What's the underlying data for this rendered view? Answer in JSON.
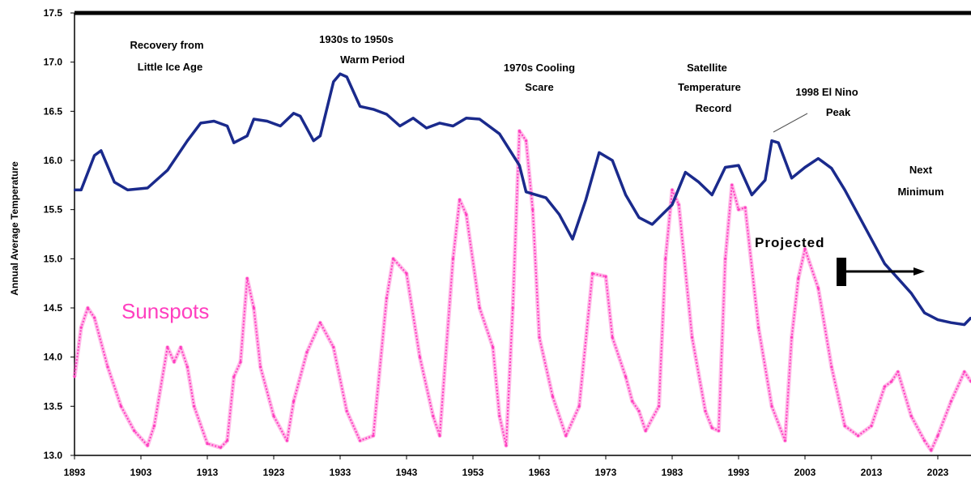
{
  "chart_data": {
    "type": "line",
    "title": "",
    "xlabel": "",
    "ylabel": "Annual Average Temperature",
    "xlim": [
      1893,
      2028
    ],
    "ylim": [
      13.0,
      17.5
    ],
    "x_ticks": [
      "1893",
      "1903",
      "1913",
      "1923",
      "1933",
      "1943",
      "1953",
      "1963",
      "1973",
      "1983",
      "1993",
      "2003",
      "2013",
      "2023"
    ],
    "y_ticks": [
      "13.0",
      "13.5",
      "14.0",
      "14.5",
      "15.0",
      "15.5",
      "16.0",
      "16.5",
      "17.0",
      "17.5"
    ],
    "grid": false,
    "colors": {
      "temperature": "#1a2a8c",
      "sunspots": "#ff3fbf",
      "axis": "#000000"
    },
    "series": [
      {
        "name": "",
        "x": [
          1893,
          1894,
          1896,
          1897,
          1899,
          1901,
          1904,
          1907,
          1910,
          1912,
          1914,
          1916,
          1917,
          1919,
          1920,
          1922,
          1924,
          1926,
          1927,
          1929,
          1930,
          1932,
          1933,
          1934,
          1936,
          1938,
          1940,
          1942,
          1944,
          1946,
          1948,
          1950,
          1952,
          1954,
          1957,
          1960,
          1961,
          1964,
          1966,
          1968,
          1970,
          1972,
          1974,
          1976,
          1978,
          1980,
          1983,
          1985,
          1987,
          1989,
          1991,
          1993,
          1995,
          1997,
          1998,
          1999,
          2000,
          2001,
          2003,
          2005,
          2007,
          2009,
          2011,
          2013,
          2015,
          2017,
          2019,
          2021,
          2023,
          2025,
          2027,
          2028
        ],
        "values": [
          15.7,
          15.7,
          16.05,
          16.1,
          15.78,
          15.7,
          15.72,
          15.9,
          16.2,
          16.38,
          16.4,
          16.35,
          16.18,
          16.25,
          16.42,
          16.4,
          16.35,
          16.48,
          16.45,
          16.2,
          16.25,
          16.8,
          16.88,
          16.85,
          16.55,
          16.52,
          16.47,
          16.35,
          16.43,
          16.33,
          16.38,
          16.35,
          16.43,
          16.42,
          16.27,
          15.95,
          15.68,
          15.62,
          15.45,
          15.2,
          15.6,
          16.08,
          16.0,
          15.65,
          15.42,
          15.35,
          15.55,
          15.88,
          15.78,
          15.65,
          15.93,
          15.95,
          15.65,
          15.8,
          16.2,
          16.18,
          16.0,
          15.82,
          15.93,
          16.02,
          15.92,
          15.7,
          15.45,
          15.2,
          14.95,
          14.8,
          14.65,
          14.45,
          14.38,
          14.35,
          14.33,
          14.4
        ]
      },
      {
        "name": "Sunspots",
        "x": [
          1893,
          1894,
          1895,
          1896,
          1898,
          1900,
          1902,
          1904,
          1905,
          1907,
          1908,
          1909,
          1910,
          1911,
          1913,
          1915,
          1916,
          1917,
          1918,
          1919,
          1920,
          1921,
          1923,
          1925,
          1926,
          1928,
          1930,
          1932,
          1934,
          1936,
          1938,
          1940,
          1941,
          1943,
          1945,
          1947,
          1948,
          1950,
          1951,
          1952,
          1954,
          1956,
          1957,
          1958,
          1959,
          1960,
          1961,
          1962,
          1963,
          1965,
          1967,
          1969,
          1971,
          1973,
          1974,
          1976,
          1977,
          1978,
          1979,
          1981,
          1982,
          1983,
          1984,
          1986,
          1988,
          1989,
          1990,
          1991,
          1992,
          1993,
          1994,
          1996,
          1998,
          2000,
          2001,
          2002,
          2003,
          2005,
          2007,
          2009,
          2011,
          2013,
          2015,
          2016,
          2017,
          2019,
          2021,
          2022,
          2023,
          2025,
          2027,
          2028
        ],
        "values": [
          13.8,
          14.3,
          14.5,
          14.4,
          13.9,
          13.5,
          13.25,
          13.1,
          13.3,
          14.1,
          13.95,
          14.1,
          13.9,
          13.5,
          13.12,
          13.08,
          13.15,
          13.8,
          13.95,
          14.8,
          14.5,
          13.9,
          13.4,
          13.15,
          13.55,
          14.05,
          14.35,
          14.1,
          13.45,
          13.15,
          13.2,
          14.6,
          15.0,
          14.85,
          14.0,
          13.4,
          13.2,
          15.0,
          15.6,
          15.45,
          14.5,
          14.1,
          13.4,
          13.1,
          14.5,
          16.3,
          16.2,
          15.5,
          14.2,
          13.6,
          13.2,
          13.5,
          14.85,
          14.82,
          14.2,
          13.8,
          13.55,
          13.45,
          13.25,
          13.5,
          15.0,
          15.7,
          15.55,
          14.2,
          13.45,
          13.28,
          13.25,
          15.0,
          15.75,
          15.5,
          15.52,
          14.3,
          13.5,
          13.15,
          14.2,
          14.8,
          15.1,
          14.7,
          13.9,
          13.3,
          13.2,
          13.3,
          13.7,
          13.75,
          13.85,
          13.4,
          13.15,
          13.05,
          13.2,
          13.55,
          13.85,
          13.75
        ]
      }
    ],
    "annotations": [
      {
        "id": "recovery",
        "lines": [
          "Recovery from",
          "Little Ice Age"
        ]
      },
      {
        "id": "warm",
        "lines": [
          "1930s to 1950s",
          "Warm Period"
        ]
      },
      {
        "id": "cooling",
        "lines": [
          "1970s Cooling",
          "Scare"
        ]
      },
      {
        "id": "satellite",
        "lines": [
          "Satellite",
          "Temperature",
          "Record"
        ]
      },
      {
        "id": "elnino",
        "lines": [
          "1998 El Nino",
          "Peak"
        ]
      },
      {
        "id": "nextmin",
        "lines": [
          "Next",
          "Minimum"
        ]
      },
      {
        "id": "sunspots",
        "lines": [
          "Sunspots"
        ]
      },
      {
        "id": "projected",
        "lines": [
          "Projected"
        ]
      }
    ]
  }
}
